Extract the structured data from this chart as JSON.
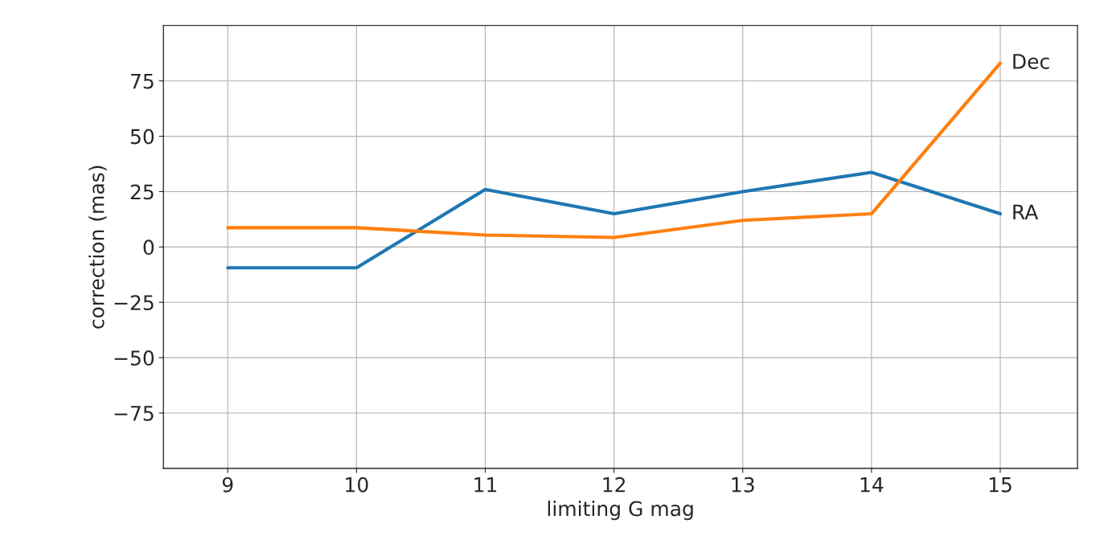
{
  "chart_data": {
    "type": "line",
    "xlabel": "limiting G mag",
    "ylabel": "correction (mas)",
    "x": [
      9,
      10,
      11,
      12,
      13,
      14,
      15
    ],
    "series": [
      {
        "name": "RA",
        "color": "#1f77b4",
        "values": [
          -9.4,
          -9.4,
          26,
          15,
          25,
          33.7,
          15
        ]
      },
      {
        "name": "Dec",
        "color": "#ff7f0e",
        "values": [
          8.7,
          8.7,
          5.4,
          4.3,
          12,
          15,
          83
        ]
      }
    ],
    "xlim": [
      8.5,
      15.6
    ],
    "xticks": [
      9,
      10,
      11,
      12,
      13,
      14,
      15
    ],
    "ylim": [
      -100,
      100
    ],
    "yticks": [
      {
        "value": -75,
        "label": "−75"
      },
      {
        "value": -50,
        "label": "−50"
      },
      {
        "value": -25,
        "label": "−25"
      },
      0,
      25,
      50,
      75
    ],
    "grid": true,
    "legend": false
  }
}
